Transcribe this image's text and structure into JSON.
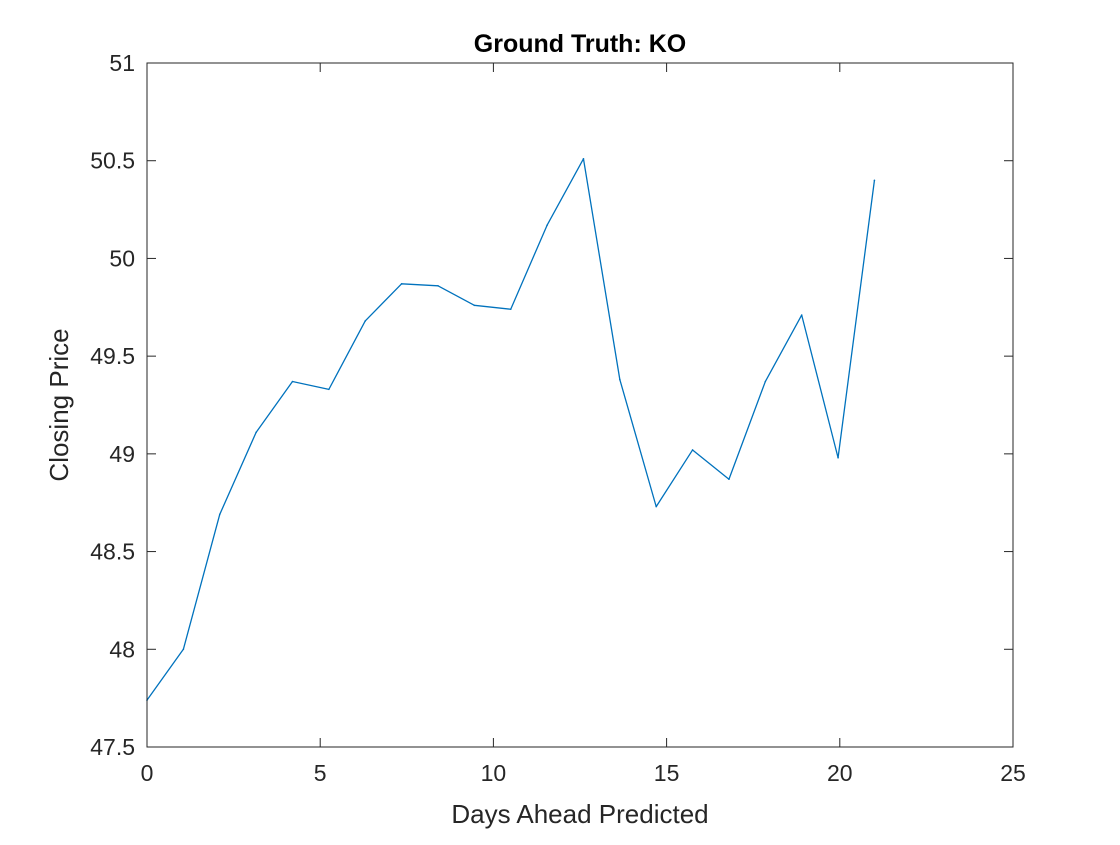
{
  "chart_data": {
    "type": "line",
    "title": "Ground Truth: KO",
    "xlabel": "Days Ahead Predicted",
    "ylabel": "Closing Price",
    "xlim": [
      0,
      25
    ],
    "ylim": [
      47.5,
      51
    ],
    "xticks": [
      0,
      5,
      10,
      15,
      20,
      25
    ],
    "yticks": [
      47.5,
      48,
      48.5,
      49,
      49.5,
      50,
      50.5,
      51
    ],
    "xtick_labels": [
      "0",
      "5",
      "10",
      "15",
      "20",
      "25"
    ],
    "ytick_labels": [
      "47.5",
      "48",
      "48.5",
      "49",
      "49.5",
      "50",
      "50.5",
      "51"
    ],
    "grid": false,
    "series": [
      {
        "color": "#0072BD",
        "x": [
          0,
          1.05,
          2.1,
          3.15,
          4.2,
          5.25,
          6.3,
          7.35,
          8.4,
          9.45,
          10.5,
          11.55,
          12.6,
          13.65,
          14.7,
          15.75,
          16.8,
          17.85,
          18.9,
          19.95,
          21
        ],
        "y": [
          47.74,
          48.0,
          48.69,
          49.11,
          49.37,
          49.33,
          49.68,
          49.87,
          49.86,
          49.76,
          49.74,
          50.17,
          50.51,
          49.38,
          48.73,
          49.02,
          48.87,
          49.37,
          49.71,
          48.98,
          50.4
        ]
      }
    ]
  }
}
